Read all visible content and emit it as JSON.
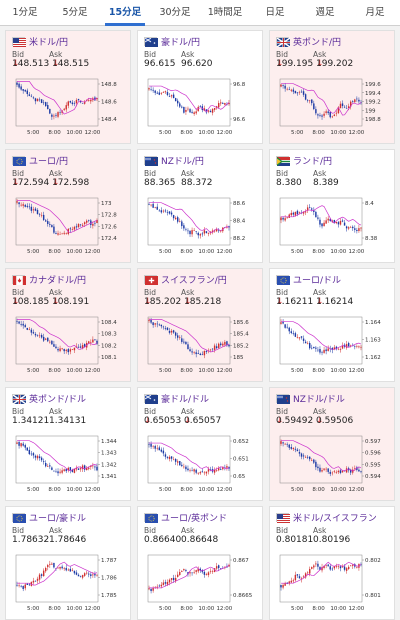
{
  "tabs": [
    {
      "label": "1分足",
      "active": false
    },
    {
      "label": "5分足",
      "active": false
    },
    {
      "label": "15分足",
      "active": true
    },
    {
      "label": "30分足",
      "active": false
    },
    {
      "label": "1時間足",
      "active": false
    },
    {
      "label": "日足",
      "active": false
    },
    {
      "label": "週足",
      "active": false
    },
    {
      "label": "月足",
      "active": false
    }
  ],
  "labels": {
    "bid": "Bid",
    "ask": "Ask"
  },
  "colors": {
    "up_candle": "#d03030",
    "down_candle": "#1c3aa5",
    "ma_line": "#cc33cc",
    "up_bg": "#fdeeee",
    "pair_text": "#5a2a98"
  },
  "x_ticks": [
    "5:00",
    "8:00",
    "10:00",
    "12:00"
  ],
  "cards": [
    {
      "pair": "米ドル/円",
      "flag": "us-flag",
      "bid": "148.513",
      "ask": "148.515",
      "bid_arrow": "down",
      "ask_arrow": "down",
      "trend": "up",
      "y_ticks": [
        "148.8",
        "148.6",
        "148.4"
      ],
      "seed": 3,
      "shape": [
        0.9,
        0.75,
        0.7,
        0.6,
        0.55,
        0.5,
        0.35,
        0.2,
        0.25,
        0.3,
        0.5,
        0.45,
        0.55,
        0.5,
        0.6,
        0.55,
        0.6
      ]
    },
    {
      "pair": "豪ドル/円",
      "flag": "au-flag",
      "bid": "96.615",
      "ask": "96.620",
      "bid_arrow": "",
      "ask_arrow": "",
      "trend": "down",
      "y_ticks": [
        "96.8",
        "96.6"
      ],
      "seed": 7,
      "shape": [
        0.8,
        0.75,
        0.7,
        0.72,
        0.65,
        0.6,
        0.45,
        0.3,
        0.35,
        0.25,
        0.4,
        0.35,
        0.3,
        0.4,
        0.5,
        0.45,
        0.5
      ]
    },
    {
      "pair": "英ポンド/円",
      "flag": "gb-flag",
      "bid": "199.195",
      "ask": "199.202",
      "bid_arrow": "down",
      "ask_arrow": "down",
      "trend": "up",
      "y_ticks": [
        "199.6",
        "199.4",
        "199.2",
        "199",
        "198.8"
      ],
      "seed": 11,
      "shape": [
        0.85,
        0.8,
        0.75,
        0.7,
        0.72,
        0.55,
        0.5,
        0.3,
        0.2,
        0.35,
        0.15,
        0.3,
        0.45,
        0.4,
        0.5,
        0.55,
        0.5
      ]
    },
    {
      "pair": "ユーロ/円",
      "flag": "eu-flag",
      "bid": "172.594",
      "ask": "172.598",
      "bid_arrow": "down",
      "ask_arrow": "down",
      "trend": "up",
      "y_ticks": [
        "173",
        "172.8",
        "172.6",
        "172.4"
      ],
      "seed": 5,
      "shape": [
        0.9,
        0.85,
        0.8,
        0.75,
        0.7,
        0.6,
        0.5,
        0.35,
        0.2,
        0.25,
        0.3,
        0.35,
        0.4,
        0.45,
        0.5,
        0.45,
        0.5
      ]
    },
    {
      "pair": "NZドル/円",
      "flag": "nz-flag",
      "bid": "88.365",
      "ask": "88.372",
      "bid_arrow": "",
      "ask_arrow": "",
      "trend": "down",
      "y_ticks": [
        "88.6",
        "88.4",
        "88.2"
      ],
      "seed": 13,
      "shape": [
        0.85,
        0.8,
        0.75,
        0.7,
        0.72,
        0.6,
        0.5,
        0.35,
        0.25,
        0.3,
        0.2,
        0.3,
        0.25,
        0.35,
        0.3,
        0.4,
        0.35
      ]
    },
    {
      "pair": "ランド/円",
      "flag": "za-flag",
      "bid": "8.380",
      "ask": "8.389",
      "bid_arrow": "",
      "ask_arrow": "",
      "trend": "down",
      "y_ticks": [
        "8.4",
        "8.38"
      ],
      "seed": 17,
      "shape": [
        0.55,
        0.6,
        0.65,
        0.7,
        0.68,
        0.75,
        0.8,
        0.6,
        0.4,
        0.5,
        0.55,
        0.45,
        0.5,
        0.4,
        0.35,
        0.3,
        0.35
      ]
    },
    {
      "pair": "カナダドル/円",
      "flag": "ca-flag",
      "bid": "108.185",
      "ask": "108.191",
      "bid_arrow": "down",
      "ask_arrow": "down",
      "trend": "up",
      "y_ticks": [
        "108.4",
        "108.3",
        "108.2",
        "108.1"
      ],
      "seed": 19,
      "shape": [
        0.9,
        0.85,
        0.75,
        0.7,
        0.6,
        0.55,
        0.5,
        0.4,
        0.3,
        0.35,
        0.25,
        0.3,
        0.4,
        0.35,
        0.45,
        0.5,
        0.45
      ]
    },
    {
      "pair": "スイスフラン/円",
      "flag": "ch-flag",
      "bid": "185.202",
      "ask": "185.218",
      "bid_arrow": "down",
      "ask_arrow": "down",
      "trend": "up",
      "y_ticks": [
        "185.6",
        "185.4",
        "185.2",
        "185"
      ],
      "seed": 23,
      "shape": [
        0.9,
        0.85,
        0.8,
        0.75,
        0.7,
        0.65,
        0.55,
        0.45,
        0.3,
        0.25,
        0.2,
        0.25,
        0.3,
        0.35,
        0.4,
        0.45,
        0.4
      ]
    },
    {
      "pair": "ユーロ/ドル",
      "flag": "eu-flag",
      "bid": "1.16211",
      "ask": "1.16214",
      "bid_arrow": "down",
      "ask_arrow": "down",
      "trend": "down",
      "y_ticks": [
        "1.164",
        "1.163",
        "1.162"
      ],
      "seed": 29,
      "shape": [
        0.85,
        0.8,
        0.7,
        0.6,
        0.55,
        0.45,
        0.35,
        0.3,
        0.25,
        0.3,
        0.35,
        0.3,
        0.35,
        0.4,
        0.35,
        0.4,
        0.35
      ]
    },
    {
      "pair": "英ポンド/ドル",
      "flag": "gb-flag",
      "bid": "1.34121",
      "ask": "1.34131",
      "bid_arrow": "",
      "ask_arrow": "",
      "trend": "down",
      "y_ticks": [
        "1.344",
        "1.343",
        "1.342",
        "1.341"
      ],
      "seed": 31,
      "shape": [
        0.85,
        0.8,
        0.7,
        0.6,
        0.55,
        0.45,
        0.35,
        0.3,
        0.2,
        0.25,
        0.3,
        0.25,
        0.3,
        0.35,
        0.3,
        0.35,
        0.3
      ]
    },
    {
      "pair": "豪ドル/ドル",
      "flag": "au-flag",
      "bid": "0.65053",
      "ask": "0.65057",
      "bid_arrow": "down",
      "ask_arrow": "down",
      "trend": "down",
      "y_ticks": [
        "0.652",
        "0.651",
        "0.65"
      ],
      "seed": 37,
      "shape": [
        0.8,
        0.75,
        0.7,
        0.6,
        0.55,
        0.5,
        0.4,
        0.35,
        0.25,
        0.3,
        0.2,
        0.25,
        0.3,
        0.25,
        0.3,
        0.35,
        0.3
      ]
    },
    {
      "pair": "NZドル/ドル",
      "flag": "nz-flag",
      "bid": "0.59492",
      "ask": "0.59506",
      "bid_arrow": "down",
      "ask_arrow": "down",
      "trend": "up",
      "y_ticks": [
        "0.597",
        "0.596",
        "0.595",
        "0.594"
      ],
      "seed": 41,
      "shape": [
        0.85,
        0.8,
        0.75,
        0.7,
        0.6,
        0.55,
        0.5,
        0.35,
        0.25,
        0.3,
        0.2,
        0.25,
        0.2,
        0.3,
        0.25,
        0.3,
        0.25
      ]
    },
    {
      "pair": "ユーロ/豪ドル",
      "flag": "eu-flag",
      "bid": "1.78632",
      "ask": "1.78646",
      "bid_arrow": "",
      "ask_arrow": "",
      "trend": "down",
      "y_ticks": [
        "1.787",
        "1.786",
        "1.785"
      ],
      "seed": 43,
      "shape": [
        0.35,
        0.3,
        0.35,
        0.4,
        0.5,
        0.6,
        0.75,
        0.8,
        0.7,
        0.75,
        0.7,
        0.65,
        0.6,
        0.55,
        0.6,
        0.55,
        0.6
      ]
    },
    {
      "pair": "ユーロ/英ポンド",
      "flag": "eu-flag",
      "bid": "0.86640",
      "ask": "0.86648",
      "bid_arrow": "",
      "ask_arrow": "",
      "trend": "down",
      "y_ticks": [
        "0.867",
        "0.8665"
      ],
      "seed": 47,
      "shape": [
        0.25,
        0.3,
        0.35,
        0.4,
        0.45,
        0.5,
        0.65,
        0.7,
        0.6,
        0.65,
        0.7,
        0.6,
        0.65,
        0.7,
        0.75,
        0.7,
        0.75
      ]
    },
    {
      "pair": "米ドル/スイスフラン",
      "flag": "us-flag",
      "bid": "0.80181",
      "ask": "0.80196",
      "bid_arrow": "",
      "ask_arrow": "",
      "trend": "down",
      "y_ticks": [
        "0.802",
        "0.801"
      ],
      "seed": 53,
      "shape": [
        0.35,
        0.4,
        0.45,
        0.55,
        0.5,
        0.6,
        0.7,
        0.8,
        0.7,
        0.75,
        0.7,
        0.8,
        0.75,
        0.7,
        0.8,
        0.75,
        0.8
      ]
    }
  ]
}
